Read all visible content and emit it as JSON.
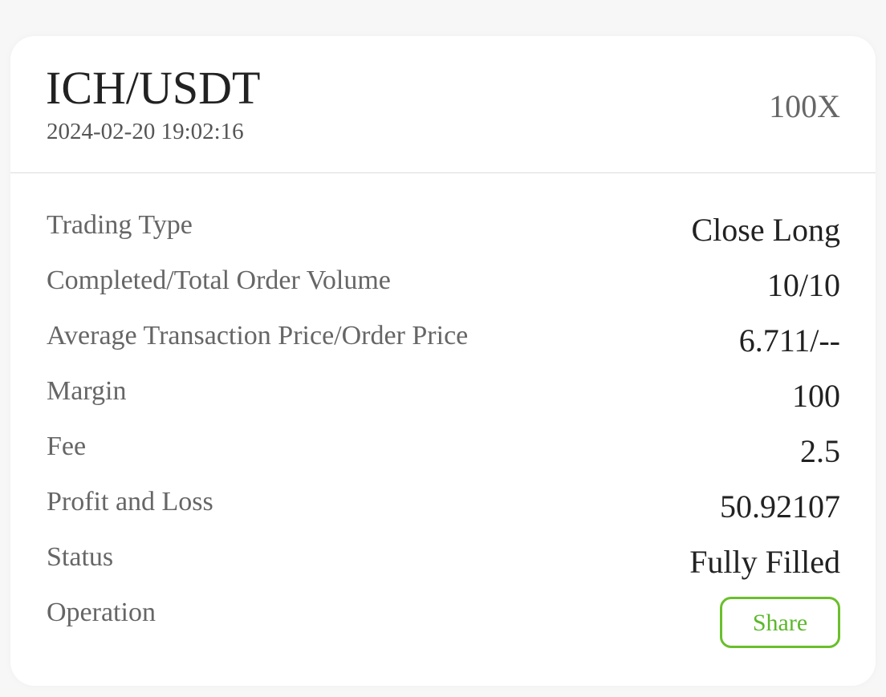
{
  "header": {
    "pair": "ICH/USDT",
    "datetime": "2024-02-20 19:02:16",
    "leverage": "100X"
  },
  "rows": [
    {
      "label": "Trading Type",
      "value": "Close Long"
    },
    {
      "label": "Completed/Total Order Volume",
      "value": "10/10"
    },
    {
      "label": "Average Transaction Price/Order Price",
      "value": "6.711/--"
    },
    {
      "label": "Margin",
      "value": "100"
    },
    {
      "label": "Fee",
      "value": "2.5"
    },
    {
      "label": "Profit and Loss",
      "value": "50.92107"
    },
    {
      "label": "Status",
      "value": "Fully Filled"
    },
    {
      "label": "Operation"
    }
  ],
  "actions": {
    "share_label": "Share"
  },
  "colors": {
    "accent": "#5cb82a",
    "text_primary": "#222222",
    "text_secondary": "#666666"
  }
}
